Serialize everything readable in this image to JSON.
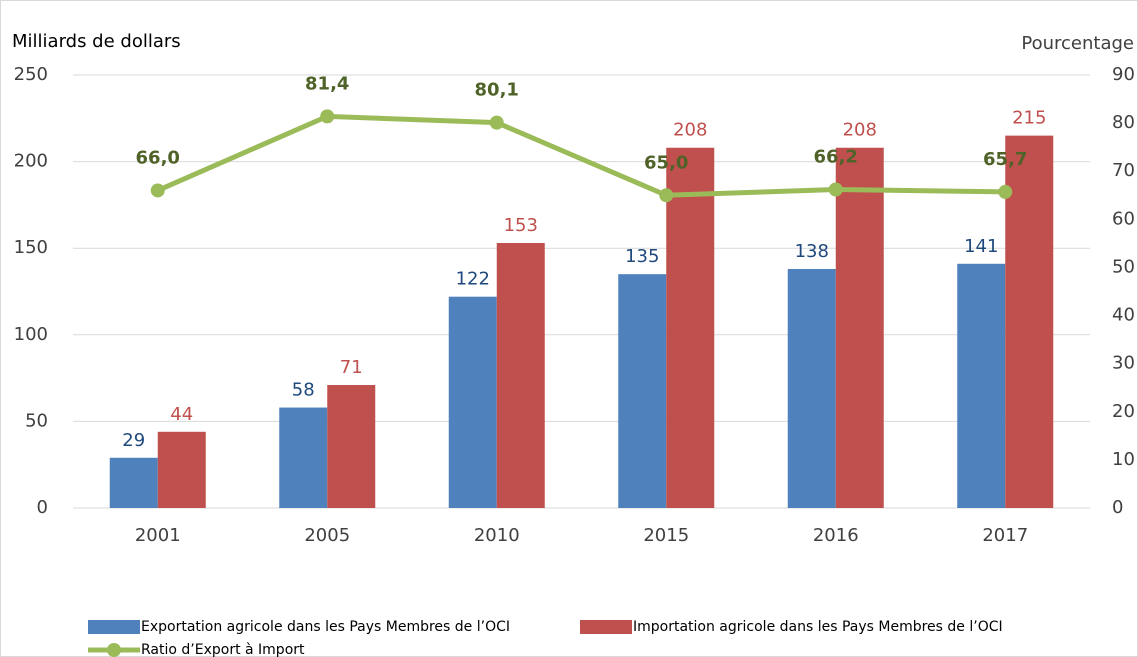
{
  "chart_data": {
    "type": "bar",
    "y_label": "Milliards de dollars",
    "y2_label": "Pourcentage",
    "categories": [
      "2001",
      "2005",
      "2010",
      "2015",
      "2016",
      "2017"
    ],
    "series": [
      {
        "name": "Exportation agricole dans les Pays Membres de l’OCI",
        "color": "#4f81bd",
        "label_color": "#1f497d",
        "values": [
          29,
          58,
          122,
          135,
          138,
          141
        ]
      },
      {
        "name": "Importation agricole dans les Pays Membres de l’OCI",
        "color": "#c0504d",
        "label_color": "#c0504d",
        "values": [
          44,
          71,
          153,
          208,
          208,
          215
        ]
      },
      {
        "name": "Ratio d’Export à Import",
        "type": "line",
        "axis": "y2",
        "color": "#9bbb59",
        "label_color": "#4f6228",
        "values": [
          66.0,
          81.4,
          80.1,
          65.0,
          66.2,
          65.7
        ],
        "value_labels": [
          "66,0",
          "81,4",
          "80,1",
          "65,0",
          "66,2",
          "65,7"
        ]
      }
    ],
    "ylim": [
      0,
      250
    ],
    "yticks": [
      0,
      50,
      100,
      150,
      200,
      250
    ],
    "y2lim": [
      0,
      90
    ],
    "y2ticks": [
      0,
      10,
      20,
      30,
      40,
      50,
      60,
      70,
      80,
      90
    ],
    "grid": true
  }
}
